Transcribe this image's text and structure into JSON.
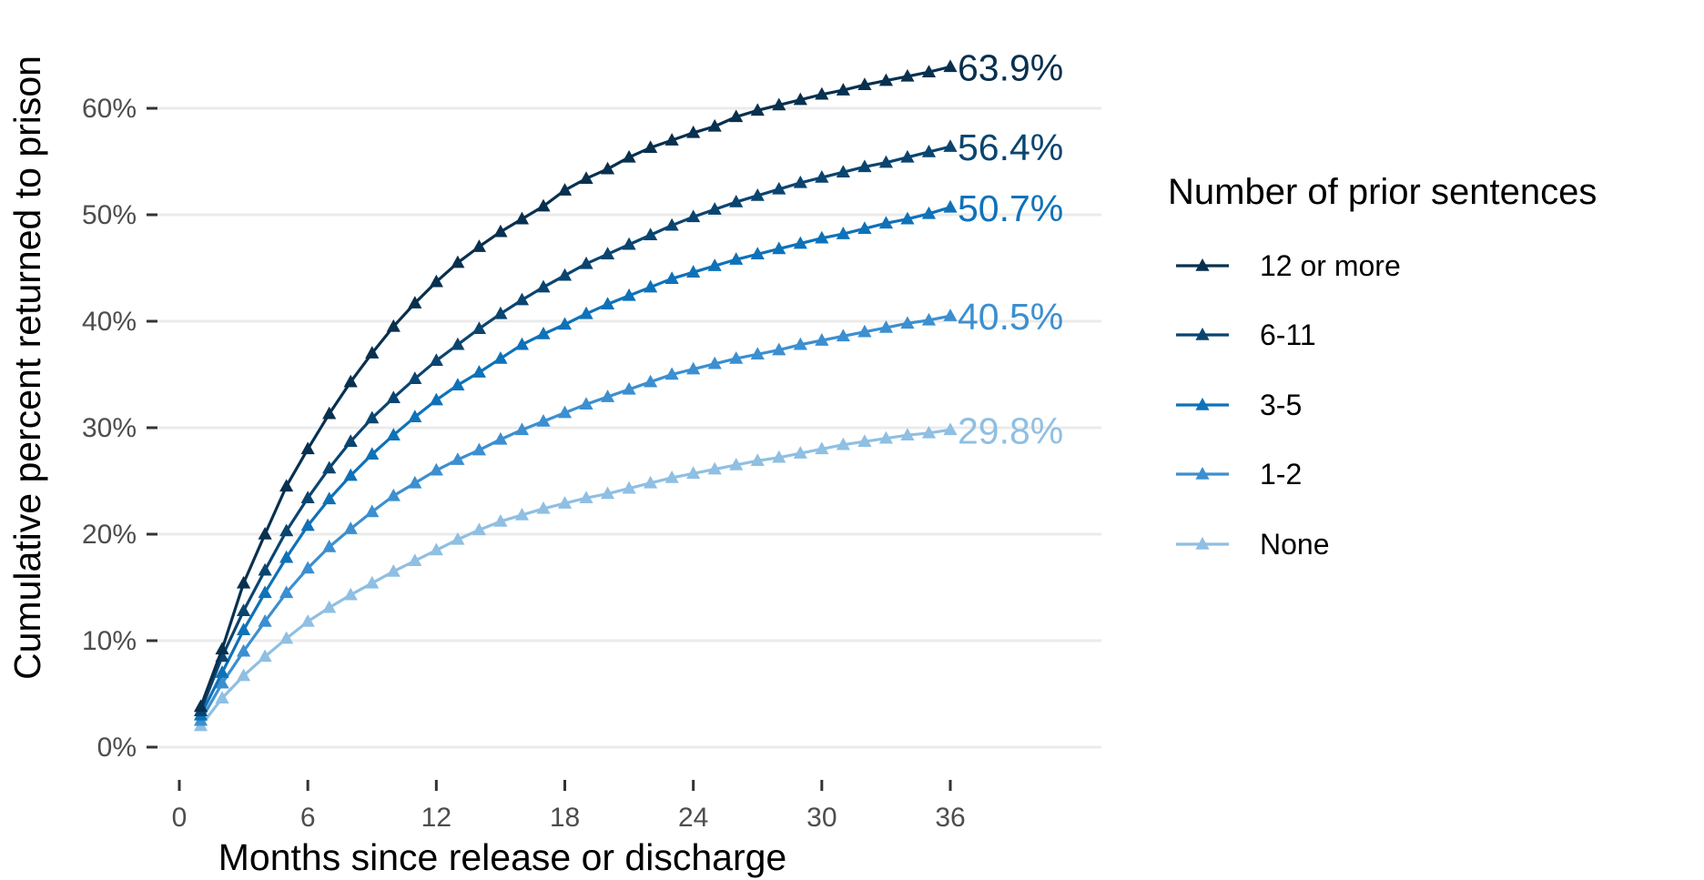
{
  "chart_data": {
    "type": "line",
    "xlabel": "Months since release or discharge",
    "ylabel": "Cumulative percent returned to prison",
    "xlim": [
      0,
      36
    ],
    "ylim": [
      0,
      0.62
    ],
    "x_ticks": [
      0,
      6,
      12,
      18,
      24,
      30,
      36
    ],
    "x_tick_labels": [
      "0",
      "6",
      "12",
      "18",
      "24",
      "30",
      "36"
    ],
    "y_ticks": [
      0,
      0.1,
      0.2,
      0.3,
      0.4,
      0.5,
      0.6
    ],
    "y_tick_labels": [
      "0%",
      "10%",
      "20%",
      "30%",
      "40%",
      "50%",
      "60%"
    ],
    "grid": "horizontal major",
    "legend": {
      "title": "Number of prior sentences",
      "placement": "right",
      "entries": [
        "12 or more",
        "6-11",
        "3-5",
        "1-2",
        "None"
      ]
    },
    "x": [
      1,
      2,
      3,
      4,
      5,
      6,
      7,
      8,
      9,
      10,
      11,
      12,
      13,
      14,
      15,
      16,
      17,
      18,
      19,
      20,
      21,
      22,
      23,
      24,
      25,
      26,
      27,
      28,
      29,
      30,
      31,
      32,
      33,
      34,
      35,
      36
    ],
    "series": [
      {
        "name": "12 or more",
        "color": "#08304f",
        "end_label": "63.9%",
        "values": [
          0.038,
          0.092,
          0.154,
          0.2,
          0.245,
          0.28,
          0.313,
          0.343,
          0.37,
          0.395,
          0.417,
          0.437,
          0.455,
          0.47,
          0.484,
          0.496,
          0.508,
          0.523,
          0.534,
          0.543,
          0.554,
          0.563,
          0.57,
          0.577,
          0.583,
          0.592,
          0.598,
          0.603,
          0.608,
          0.613,
          0.617,
          0.622,
          0.626,
          0.63,
          0.634,
          0.639
        ]
      },
      {
        "name": "6-11",
        "color": "#0a4570",
        "end_label": "56.4%",
        "values": [
          0.034,
          0.085,
          0.128,
          0.166,
          0.203,
          0.234,
          0.262,
          0.287,
          0.309,
          0.328,
          0.346,
          0.363,
          0.378,
          0.393,
          0.407,
          0.42,
          0.432,
          0.443,
          0.454,
          0.463,
          0.472,
          0.481,
          0.49,
          0.498,
          0.505,
          0.512,
          0.518,
          0.524,
          0.53,
          0.535,
          0.54,
          0.545,
          0.549,
          0.554,
          0.559,
          0.564
        ]
      },
      {
        "name": "3-5",
        "color": "#0e72b9",
        "end_label": "50.7%",
        "values": [
          0.03,
          0.07,
          0.11,
          0.145,
          0.178,
          0.208,
          0.233,
          0.255,
          0.275,
          0.293,
          0.31,
          0.326,
          0.34,
          0.352,
          0.365,
          0.378,
          0.388,
          0.397,
          0.407,
          0.416,
          0.424,
          0.432,
          0.44,
          0.446,
          0.452,
          0.458,
          0.463,
          0.468,
          0.473,
          0.478,
          0.482,
          0.487,
          0.492,
          0.496,
          0.501,
          0.507
        ]
      },
      {
        "name": "1-2",
        "color": "#3c8fd0",
        "end_label": "40.5%",
        "values": [
          0.025,
          0.06,
          0.09,
          0.118,
          0.145,
          0.168,
          0.188,
          0.205,
          0.221,
          0.236,
          0.248,
          0.26,
          0.27,
          0.279,
          0.289,
          0.298,
          0.306,
          0.314,
          0.322,
          0.329,
          0.336,
          0.343,
          0.35,
          0.355,
          0.36,
          0.365,
          0.369,
          0.373,
          0.378,
          0.382,
          0.386,
          0.39,
          0.394,
          0.398,
          0.401,
          0.405
        ]
      },
      {
        "name": "None",
        "color": "#8fbfe2",
        "end_label": "29.8%",
        "values": [
          0.02,
          0.046,
          0.067,
          0.085,
          0.102,
          0.118,
          0.131,
          0.143,
          0.154,
          0.165,
          0.175,
          0.185,
          0.195,
          0.204,
          0.212,
          0.218,
          0.224,
          0.229,
          0.234,
          0.238,
          0.243,
          0.248,
          0.253,
          0.257,
          0.261,
          0.265,
          0.269,
          0.272,
          0.276,
          0.28,
          0.284,
          0.287,
          0.29,
          0.293,
          0.295,
          0.298
        ]
      }
    ]
  }
}
